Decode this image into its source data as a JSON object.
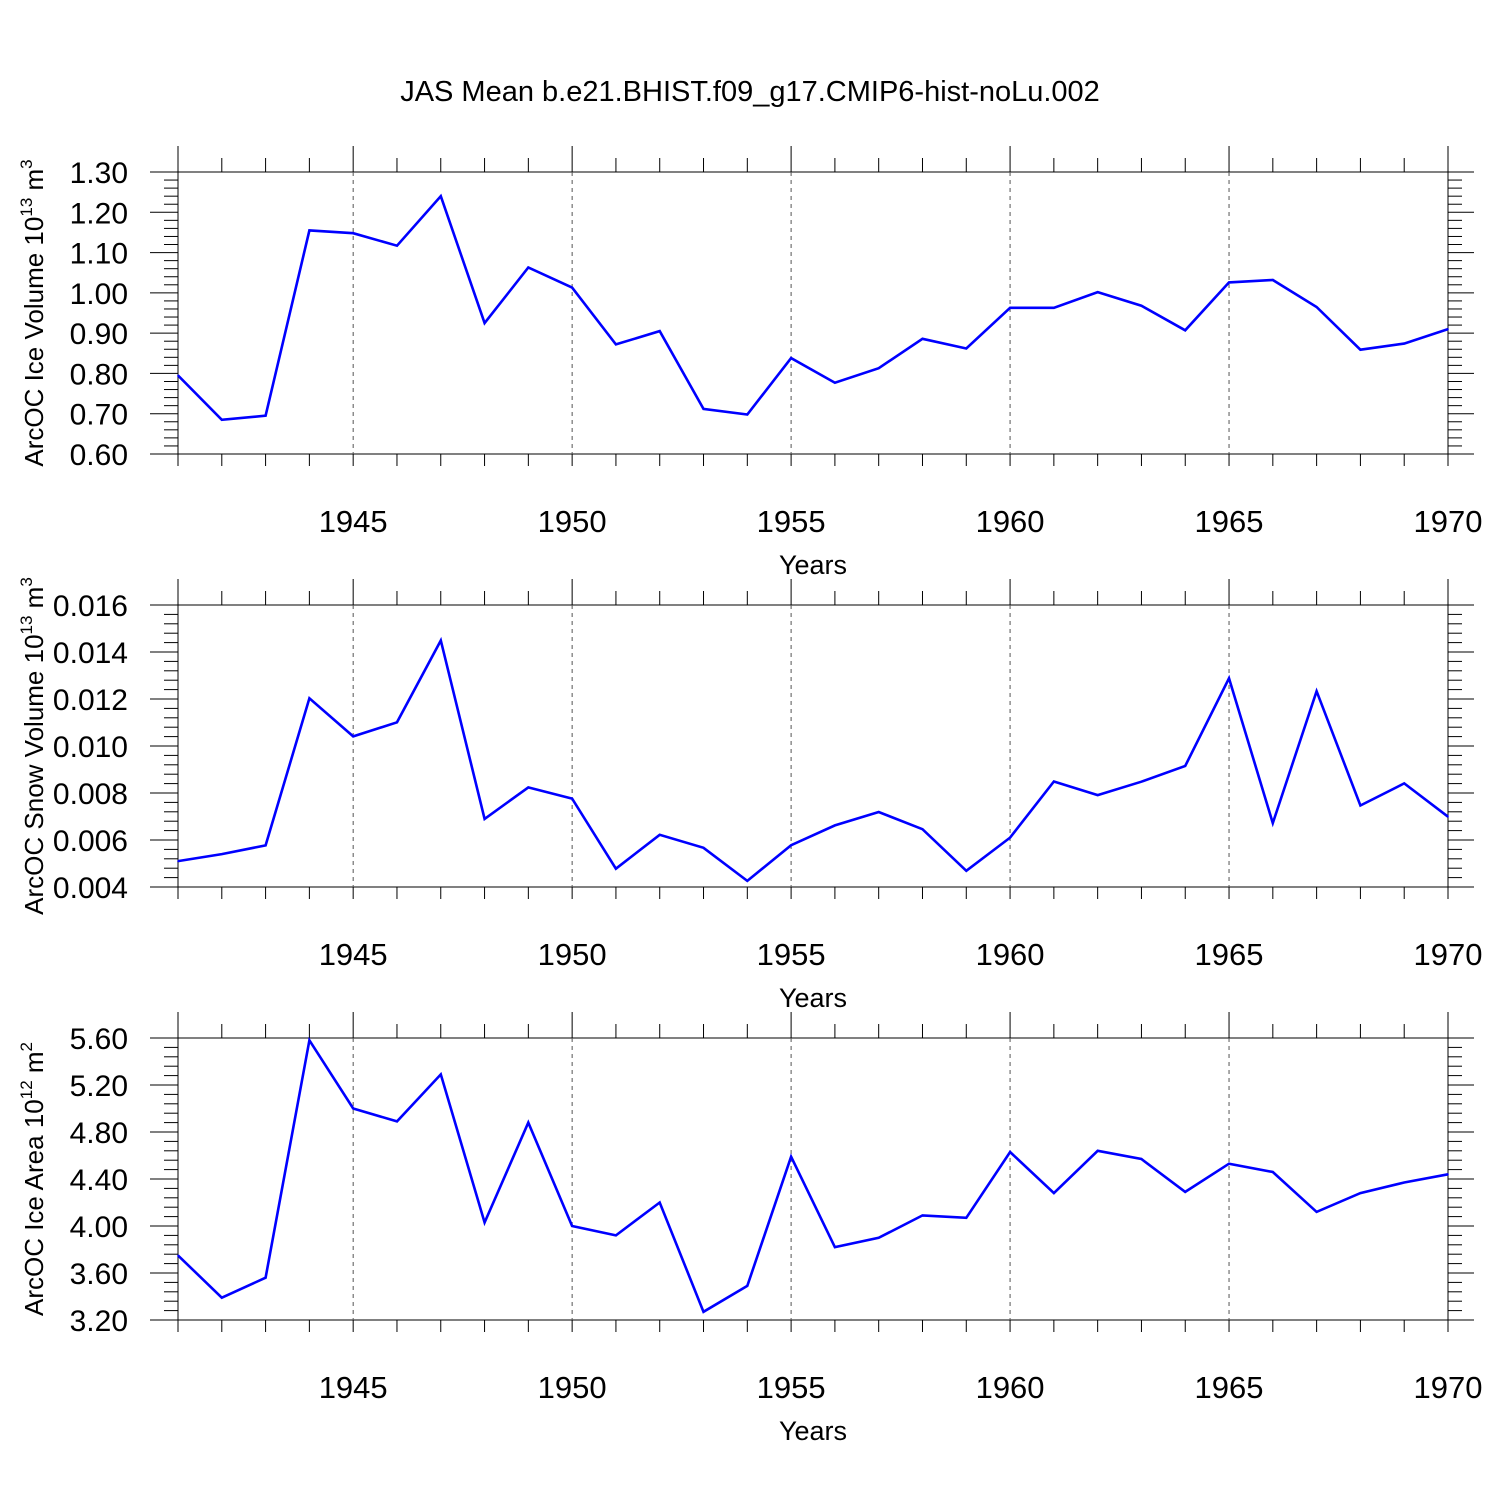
{
  "title": "JAS Mean b.e21.BHIST.f09_g17.CMIP6-hist-noLu.002",
  "line_color": "#0000ff",
  "chart_data": [
    {
      "type": "line",
      "ylabel": "ArcOC Ice Volume 10",
      "ylabel_exp": "13",
      "ylabel_unit": " m",
      "ylabel_unit_exp": "3",
      "xlabel": "Years",
      "xlim": [
        1941,
        1970
      ],
      "ylim": [
        0.6,
        1.3
      ],
      "yticks": [
        "0.60",
        "0.70",
        "0.80",
        "0.90",
        "1.00",
        "1.10",
        "1.20",
        "1.30"
      ],
      "xticks": [
        "1945",
        "1950",
        "1955",
        "1960",
        "1965",
        "1970"
      ],
      "x": [
        1941,
        1942,
        1943,
        1944,
        1945,
        1946,
        1947,
        1948,
        1949,
        1950,
        1951,
        1952,
        1953,
        1954,
        1955,
        1956,
        1957,
        1958,
        1959,
        1960,
        1961,
        1962,
        1963,
        1964,
        1965,
        1966,
        1967,
        1968,
        1969,
        1970
      ],
      "values": [
        0.795,
        0.685,
        0.695,
        1.155,
        1.148,
        1.117,
        1.24,
        0.925,
        1.063,
        1.013,
        0.872,
        0.905,
        0.712,
        0.698,
        0.838,
        0.777,
        0.813,
        0.886,
        0.862,
        0.963,
        0.963,
        1.002,
        0.968,
        0.907,
        1.026,
        1.032,
        0.965,
        0.859,
        0.874,
        0.91
      ]
    },
    {
      "type": "line",
      "ylabel": "ArcOC Snow Volume 10",
      "ylabel_exp": "13",
      "ylabel_unit": " m",
      "ylabel_unit_exp": "3",
      "xlabel": "Years",
      "xlim": [
        1941,
        1970
      ],
      "ylim": [
        0.004,
        0.016
      ],
      "yticks": [
        "0.004",
        "0.006",
        "0.008",
        "0.010",
        "0.012",
        "0.014",
        "0.016"
      ],
      "xticks": [
        "1945",
        "1950",
        "1955",
        "1960",
        "1965",
        "1970"
      ],
      "x": [
        1941,
        1942,
        1943,
        1944,
        1945,
        1946,
        1947,
        1948,
        1949,
        1950,
        1951,
        1952,
        1953,
        1954,
        1955,
        1956,
        1957,
        1958,
        1959,
        1960,
        1961,
        1962,
        1963,
        1964,
        1965,
        1966,
        1967,
        1968,
        1969,
        1970
      ],
      "values": [
        0.0051,
        0.0054,
        0.00577,
        0.01203,
        0.01041,
        0.01101,
        0.01449,
        0.0069,
        0.00824,
        0.00776,
        0.00478,
        0.00622,
        0.00567,
        0.00426,
        0.00578,
        0.00662,
        0.00719,
        0.00646,
        0.00469,
        0.0061,
        0.00849,
        0.00791,
        0.00848,
        0.00915,
        0.01288,
        0.00672,
        0.01233,
        0.00747,
        0.00841,
        0.00699
      ]
    },
    {
      "type": "line",
      "ylabel": "ArcOC Ice Area 10",
      "ylabel_exp": "12",
      "ylabel_unit": " m",
      "ylabel_unit_exp": "2",
      "xlabel": "Years",
      "xlim": [
        1941,
        1970
      ],
      "ylim": [
        3.2,
        5.6
      ],
      "yticks": [
        "3.20",
        "3.60",
        "4.00",
        "4.40",
        "4.80",
        "5.20",
        "5.60"
      ],
      "xticks": [
        "1945",
        "1950",
        "1955",
        "1960",
        "1965",
        "1970"
      ],
      "x": [
        1941,
        1942,
        1943,
        1944,
        1945,
        1946,
        1947,
        1948,
        1949,
        1950,
        1951,
        1952,
        1953,
        1954,
        1955,
        1956,
        1957,
        1958,
        1959,
        1960,
        1961,
        1962,
        1963,
        1964,
        1965,
        1966,
        1967,
        1968,
        1969,
        1970
      ],
      "values": [
        3.75,
        3.39,
        3.56,
        5.58,
        5.0,
        4.89,
        5.29,
        4.03,
        4.88,
        4.0,
        3.92,
        4.2,
        3.27,
        3.49,
        4.59,
        3.82,
        3.9,
        4.09,
        4.07,
        4.63,
        4.28,
        4.64,
        4.57,
        4.29,
        4.53,
        4.46,
        4.12,
        4.28,
        4.37,
        4.44
      ]
    }
  ]
}
